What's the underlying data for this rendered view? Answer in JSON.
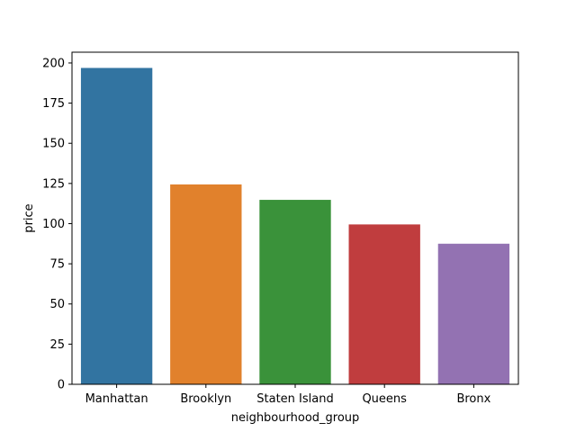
{
  "chart_data": {
    "type": "bar",
    "title": "",
    "xlabel": "neighbourhood_group",
    "ylabel": "price",
    "categories": [
      "Manhattan",
      "Brooklyn",
      "Staten Island",
      "Queens",
      "Bronx"
    ],
    "values": [
      196.9,
      124.4,
      114.8,
      99.5,
      87.5
    ],
    "colors": [
      "#3274a1",
      "#e1812c",
      "#3a923a",
      "#c03d3e",
      "#9372b2"
    ],
    "ylim": [
      0,
      206.7
    ],
    "yticks": [
      0,
      25,
      50,
      75,
      100,
      125,
      150,
      175,
      200
    ],
    "grid": false,
    "legend": "none"
  }
}
